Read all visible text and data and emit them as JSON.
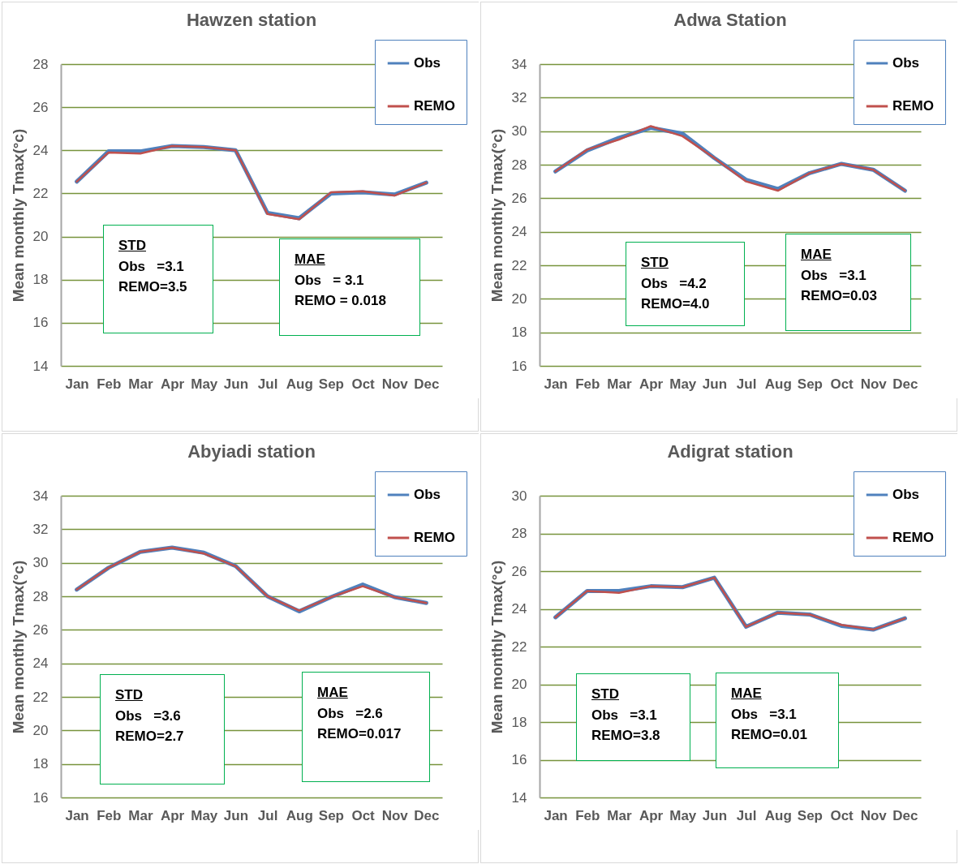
{
  "chart_data": [
    {
      "type": "line",
      "title": "Hawzen station",
      "ylabel": "Mean monthly Tmax(°c)",
      "categories": [
        "Jan",
        "Feb",
        "Mar",
        "Apr",
        "May",
        "Jun",
        "Jul",
        "Aug",
        "Sep",
        "Oct",
        "Nov",
        "Dec"
      ],
      "series": [
        {
          "name": "Obs",
          "color": "#4f81bd",
          "values": [
            22.55,
            23.95,
            23.95,
            24.2,
            24.15,
            24.0,
            21.1,
            20.85,
            22.0,
            22.05,
            21.95,
            22.5
          ]
        },
        {
          "name": "REMO",
          "color": "#c0504d",
          "values": [
            22.55,
            23.9,
            23.85,
            24.2,
            24.15,
            24.0,
            21.05,
            20.8,
            22.05,
            22.1,
            21.9,
            22.5
          ]
        }
      ],
      "ylim": [
        14,
        28
      ],
      "yticks": [
        14,
        16,
        18,
        20,
        22,
        24,
        26,
        28
      ],
      "grid": "y",
      "legend": "top right",
      "marker": "none",
      "line_style": "solid",
      "annotations": [
        "STD\nObs   =3.1\nREMO=3.5",
        "MAE\nObs   = 3.1\nREMO = 0.018"
      ]
    },
    {
      "type": "line",
      "title": "Adwa Station",
      "ylabel": "Mean monthly Tmax(°c)",
      "categories": [
        "Jan",
        "Feb",
        "Mar",
        "Apr",
        "May",
        "Jun",
        "Jul",
        "Aug",
        "Sep",
        "Oct",
        "Nov",
        "Dec"
      ],
      "series": [
        {
          "name": "Obs",
          "color": "#4f81bd",
          "values": [
            27.6,
            28.85,
            29.6,
            30.2,
            29.85,
            28.4,
            27.1,
            26.55,
            27.5,
            28.05,
            27.7,
            26.45
          ]
        },
        {
          "name": "REMO",
          "color": "#c0504d",
          "values": [
            27.6,
            28.9,
            29.5,
            30.3,
            29.7,
            28.4,
            27.0,
            26.45,
            27.5,
            28.05,
            27.7,
            26.45
          ]
        }
      ],
      "ylim": [
        16,
        34
      ],
      "yticks": [
        16,
        18,
        20,
        22,
        24,
        26,
        28,
        30,
        32,
        34
      ],
      "grid": "y",
      "legend": "top right",
      "marker": "none",
      "line_style": "solid",
      "annotations": [
        "STD\nObs   =4.2\nREMO=4.0",
        "MAE\nObs   =3.1\nREMO=0.03"
      ]
    },
    {
      "type": "line",
      "title": "Abyiadi  station",
      "ylabel": "Mean monthly Tmax(°c)",
      "categories": [
        "Jan",
        "Feb",
        "Mar",
        "Apr",
        "May",
        "Jun",
        "Jul",
        "Aug",
        "Sep",
        "Oct",
        "Nov",
        "Dec"
      ],
      "series": [
        {
          "name": "Obs",
          "color": "#4f81bd",
          "values": [
            28.4,
            29.7,
            30.65,
            30.9,
            30.6,
            29.8,
            28.0,
            27.1,
            27.95,
            28.7,
            27.95,
            27.6
          ]
        },
        {
          "name": "REMO",
          "color": "#c0504d",
          "values": [
            28.4,
            29.7,
            30.65,
            30.9,
            30.55,
            29.8,
            28.0,
            27.15,
            27.95,
            28.6,
            27.95,
            27.6
          ]
        }
      ],
      "ylim": [
        16,
        34
      ],
      "yticks": [
        16,
        18,
        20,
        22,
        24,
        26,
        28,
        30,
        32,
        34
      ],
      "grid": "y",
      "legend": "top right",
      "marker": "none",
      "line_style": "solid",
      "annotations": [
        "STD\nObs   =3.6\nREMO=2.7",
        "MAE\nObs   =2.6\nREMO=0.017"
      ]
    },
    {
      "type": "line",
      "title": "Adigrat station",
      "ylabel": "Mean monthly Tmax(°c)",
      "categories": [
        "Jan",
        "Feb",
        "Mar",
        "Apr",
        "May",
        "Jun",
        "Jul",
        "Aug",
        "Sep",
        "Oct",
        "Nov",
        "Dec"
      ],
      "series": [
        {
          "name": "Obs",
          "color": "#4f81bd",
          "values": [
            23.55,
            24.95,
            24.95,
            25.2,
            25.15,
            25.65,
            23.05,
            23.8,
            23.7,
            23.1,
            22.9,
            23.5
          ]
        },
        {
          "name": "REMO",
          "color": "#c0504d",
          "values": [
            23.55,
            24.95,
            24.85,
            25.2,
            25.15,
            25.65,
            23.05,
            23.8,
            23.7,
            23.15,
            22.9,
            23.5
          ]
        }
      ],
      "ylim": [
        14,
        30
      ],
      "yticks": [
        14,
        16,
        18,
        20,
        22,
        24,
        26,
        28,
        30
      ],
      "grid": "y",
      "legend": "top right",
      "marker": "none",
      "line_style": "solid",
      "annotations": [
        "STD\nObs   =3.1\nREMO=3.8",
        "MAE\nObs   =3.1\nREMO=0.01"
      ]
    }
  ]
}
